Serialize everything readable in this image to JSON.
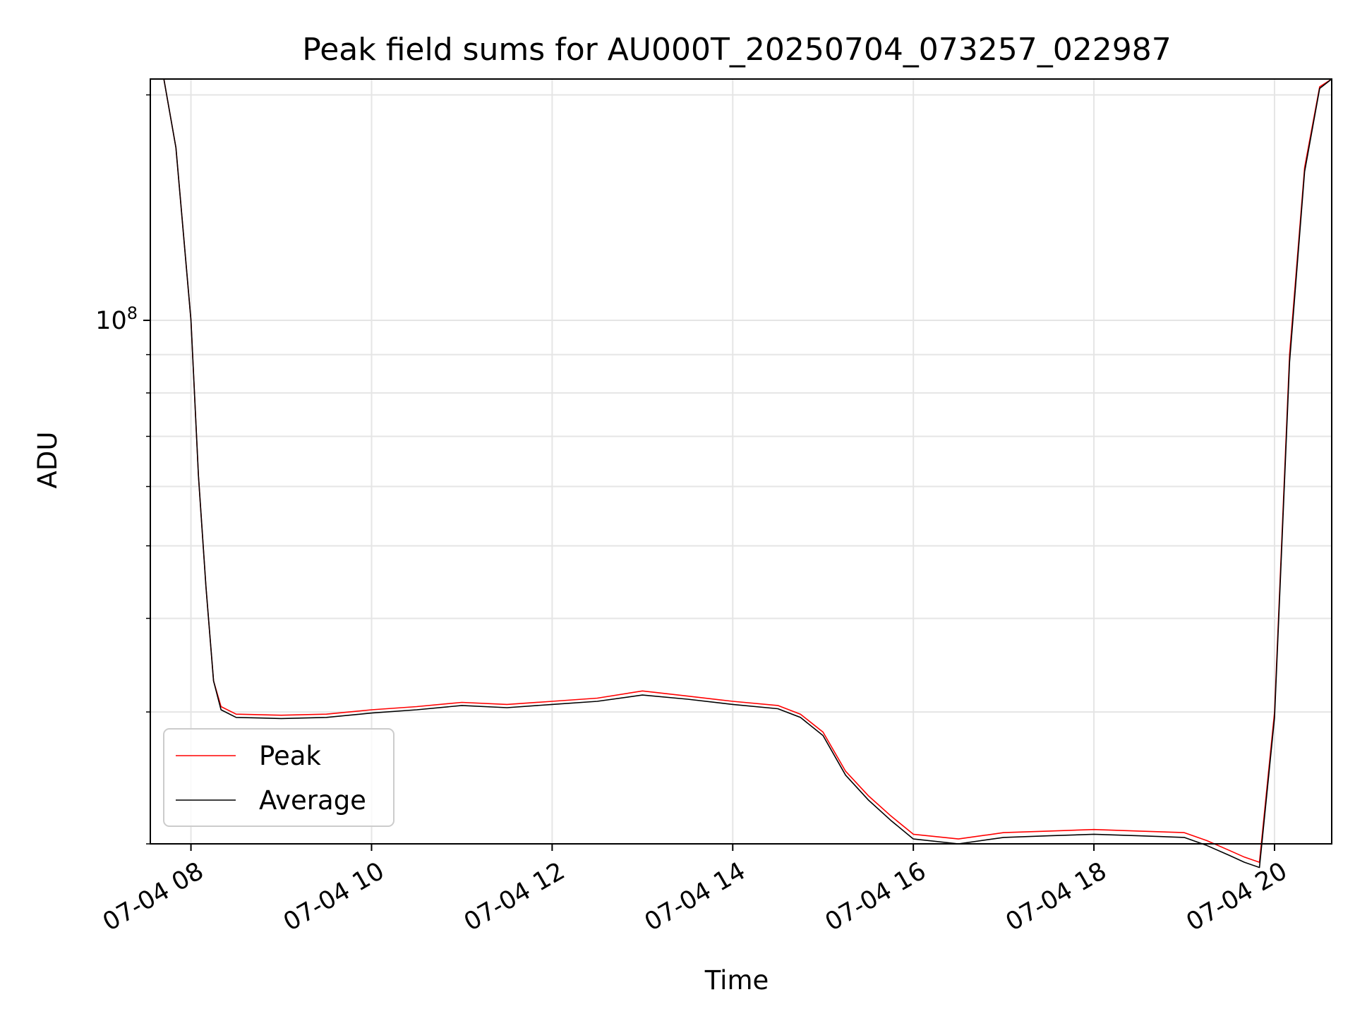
{
  "chart_data": {
    "type": "line",
    "title": "Peak field sums for AU000T_20250704_073257_022987",
    "xlabel": "Time",
    "ylabel": "ADU",
    "yscale": "log",
    "grid": true,
    "legend_placement": "lower-left",
    "x_tick_labels": [
      "07-04 08",
      "07-04 10",
      "07-04 12",
      "07-04 14",
      "07-04 16",
      "07-04 18",
      "07-04 20"
    ],
    "x_tick_values": [
      "2025-07-04 08:00",
      "2025-07-04 10:00",
      "2025-07-04 12:00",
      "2025-07-04 14:00",
      "2025-07-04 16:00",
      "2025-07-04 18:00",
      "2025-07-04 20:00"
    ],
    "xlim": [
      "2025-07-04 07:33",
      "2025-07-04 20:38"
    ],
    "ylim": [
      20000000,
      210000000
    ],
    "y_major_ticks": [
      {
        "value": 100000000,
        "label_base": "10",
        "label_exp": "8"
      }
    ],
    "y_minor_ticks": [
      20000000,
      30000000,
      40000000,
      50000000,
      60000000,
      70000000,
      80000000,
      90000000,
      200000000
    ],
    "series": [
      {
        "name": "Peak",
        "color": "#ff0000",
        "x": [
          "2025-07-04 07:33",
          "2025-07-04 07:42",
          "2025-07-04 07:50",
          "2025-07-04 08:00",
          "2025-07-04 08:05",
          "2025-07-04 08:10",
          "2025-07-04 08:15",
          "2025-07-04 08:20",
          "2025-07-04 08:30",
          "2025-07-04 09:00",
          "2025-07-04 09:30",
          "2025-07-04 10:00",
          "2025-07-04 10:30",
          "2025-07-04 11:00",
          "2025-07-04 11:30",
          "2025-07-04 12:00",
          "2025-07-04 12:30",
          "2025-07-04 13:00",
          "2025-07-04 13:30",
          "2025-07-04 14:00",
          "2025-07-04 14:30",
          "2025-07-04 14:45",
          "2025-07-04 15:00",
          "2025-07-04 15:15",
          "2025-07-04 15:30",
          "2025-07-04 15:45",
          "2025-07-04 16:00",
          "2025-07-04 16:30",
          "2025-07-04 17:00",
          "2025-07-04 17:30",
          "2025-07-04 18:00",
          "2025-07-04 18:30",
          "2025-07-04 19:00",
          "2025-07-04 19:15",
          "2025-07-04 19:30",
          "2025-07-04 19:40",
          "2025-07-04 19:50",
          "2025-07-04 20:00",
          "2025-07-04 20:10",
          "2025-07-04 20:20",
          "2025-07-04 20:30",
          "2025-07-04 20:38"
        ],
        "values": [
          210000000,
          210000000,
          170000000,
          100000000,
          62000000,
          44000000,
          33000000,
          30500000,
          29800000,
          29700000,
          29800000,
          30200000,
          30500000,
          30900000,
          30700000,
          31000000,
          31300000,
          32000000,
          31500000,
          31000000,
          30600000,
          29800000,
          28200000,
          25000000,
          23200000,
          21800000,
          20600000,
          20300000,
          20700000,
          20800000,
          20900000,
          20800000,
          20700000,
          20200000,
          19600000,
          19200000,
          18900000,
          30000000,
          90000000,
          160000000,
          205000000,
          210000000
        ]
      },
      {
        "name": "Average",
        "color": "#000000",
        "x": [
          "2025-07-04 07:33",
          "2025-07-04 07:42",
          "2025-07-04 07:50",
          "2025-07-04 08:00",
          "2025-07-04 08:05",
          "2025-07-04 08:10",
          "2025-07-04 08:15",
          "2025-07-04 08:20",
          "2025-07-04 08:30",
          "2025-07-04 09:00",
          "2025-07-04 09:30",
          "2025-07-04 10:00",
          "2025-07-04 10:30",
          "2025-07-04 11:00",
          "2025-07-04 11:30",
          "2025-07-04 12:00",
          "2025-07-04 12:30",
          "2025-07-04 13:00",
          "2025-07-04 13:30",
          "2025-07-04 14:00",
          "2025-07-04 14:30",
          "2025-07-04 14:45",
          "2025-07-04 15:00",
          "2025-07-04 15:15",
          "2025-07-04 15:30",
          "2025-07-04 15:45",
          "2025-07-04 16:00",
          "2025-07-04 16:30",
          "2025-07-04 17:00",
          "2025-07-04 17:30",
          "2025-07-04 18:00",
          "2025-07-04 18:30",
          "2025-07-04 19:00",
          "2025-07-04 19:15",
          "2025-07-04 19:30",
          "2025-07-04 19:40",
          "2025-07-04 19:50",
          "2025-07-04 20:00",
          "2025-07-04 20:10",
          "2025-07-04 20:20",
          "2025-07-04 20:30",
          "2025-07-04 20:38"
        ],
        "values": [
          210000000,
          210000000,
          170000000,
          100000000,
          62000000,
          44000000,
          33000000,
          30200000,
          29500000,
          29400000,
          29500000,
          29900000,
          30200000,
          30600000,
          30400000,
          30700000,
          31000000,
          31600000,
          31200000,
          30700000,
          30300000,
          29500000,
          27900000,
          24700000,
          22900000,
          21500000,
          20300000,
          20000000,
          20400000,
          20500000,
          20600000,
          20500000,
          20400000,
          19900000,
          19300000,
          18900000,
          18600000,
          29500000,
          88000000,
          158000000,
          204000000,
          210000000
        ]
      }
    ]
  }
}
